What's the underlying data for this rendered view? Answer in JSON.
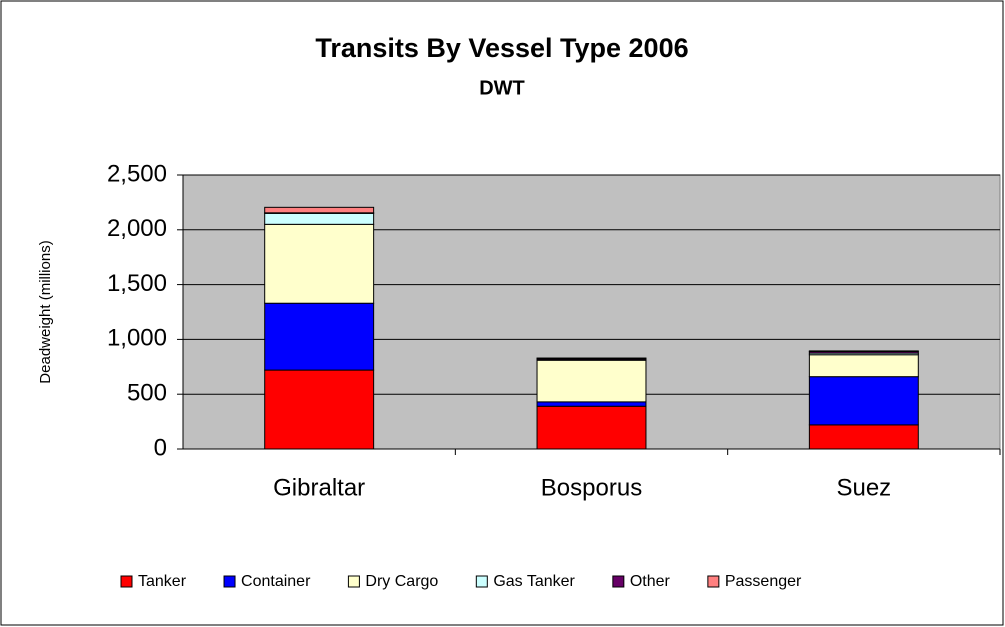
{
  "chart_data": {
    "type": "stacked_bar",
    "title": "Transits By Vessel Type 2006",
    "subtitle": "DWT",
    "y_label": "Deadweight (millions)",
    "categories": [
      "Gibraltar",
      "Bosporus",
      "Suez"
    ],
    "series": [
      {
        "name": "Tanker",
        "color": "#ff0000",
        "values": [
          720,
          390,
          220
        ]
      },
      {
        "name": "Container",
        "color": "#0000ff",
        "values": [
          610,
          40,
          440
        ]
      },
      {
        "name": "Dry Cargo",
        "color": "#ffffcc",
        "values": [
          720,
          380,
          200
        ]
      },
      {
        "name": "Gas Tanker",
        "color": "#ccffff",
        "values": [
          100,
          5,
          15
        ]
      },
      {
        "name": "Other",
        "color": "#660066",
        "values": [
          5,
          10,
          15
        ]
      },
      {
        "name": "Passenger",
        "color": "#ff8080",
        "values": [
          50,
          5,
          5
        ]
      }
    ],
    "ylim": [
      0,
      2500
    ],
    "yticks": [
      0,
      500,
      {
        "value": 1000,
        "label": "1,000"
      },
      {
        "value": 1500,
        "label": "1,500"
      },
      {
        "value": 2000,
        "label": "2,000"
      },
      {
        "value": 2500,
        "label": "2,500"
      }
    ],
    "grid": true,
    "legend": "bottom",
    "plot_background": "#c0c0c0"
  }
}
